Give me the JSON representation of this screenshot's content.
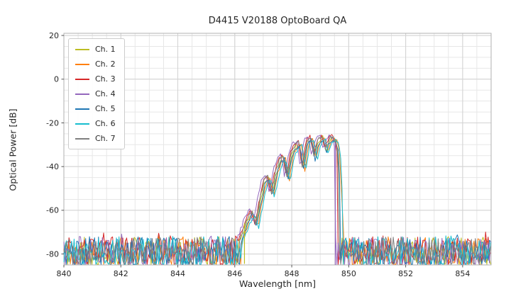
{
  "chart_data": {
    "type": "line",
    "title": "D4415 V20188 OptoBoard QA",
    "xlabel": "Wavelength [nm]",
    "ylabel": "Optical Power [dB]",
    "xlim": [
      840,
      855
    ],
    "ylim": [
      -85,
      21
    ],
    "xticks": [
      840,
      842,
      844,
      846,
      848,
      850,
      852,
      854
    ],
    "yticks": [
      20,
      0,
      -20,
      -40,
      -60,
      -80
    ],
    "grid": {
      "x_minor_step": 0.5,
      "y_minor_step": 5,
      "major_color": "#d2d2d2",
      "minor_color": "#e7e7e7"
    },
    "frame_color": "#b0b0b0",
    "tick_color": "#555555",
    "text_color": "#262626",
    "legend_position": "upper-left",
    "noise_floor": {
      "min": -86.5,
      "max": -72,
      "step_nm": 0.045
    },
    "signal_region": [
      846.15,
      849.86
    ],
    "mode_envelope": [
      [
        846.15,
        -76
      ],
      [
        846.3,
        -70
      ],
      [
        846.5,
        -63
      ],
      [
        846.62,
        -61
      ],
      [
        846.75,
        -67
      ],
      [
        846.9,
        -56
      ],
      [
        847.05,
        -47
      ],
      [
        847.18,
        -44.5
      ],
      [
        847.3,
        -53
      ],
      [
        847.45,
        -43
      ],
      [
        847.6,
        -37
      ],
      [
        847.72,
        -35.5
      ],
      [
        847.85,
        -46
      ],
      [
        848.0,
        -34
      ],
      [
        848.15,
        -30.5
      ],
      [
        848.28,
        -29.5
      ],
      [
        848.4,
        -41
      ],
      [
        848.55,
        -28.5
      ],
      [
        848.68,
        -27
      ],
      [
        848.8,
        -36
      ],
      [
        848.95,
        -28
      ],
      [
        849.1,
        -26.5
      ],
      [
        849.2,
        -33
      ],
      [
        849.35,
        -27.5
      ],
      [
        849.45,
        -27
      ],
      [
        849.55,
        -28.5
      ],
      [
        849.62,
        -33
      ],
      [
        849.7,
        -55
      ],
      [
        849.78,
        -75
      ]
    ],
    "series": [
      {
        "name": "Ch. 1",
        "color": "#bcbd22",
        "seed": 11,
        "x_shift": 0.0,
        "y_shift": 0.0,
        "cutoff": 849.66
      },
      {
        "name": "Ch. 2",
        "color": "#ff7f0e",
        "seed": 22,
        "x_shift": 0.06,
        "y_shift": -0.5,
        "cutoff": 849.86
      },
      {
        "name": "Ch. 3",
        "color": "#d62728",
        "seed": 33,
        "x_shift": -0.04,
        "y_shift": 0.8,
        "cutoff": 849.62
      },
      {
        "name": "Ch. 4",
        "color": "#9467bd",
        "seed": 44,
        "x_shift": -0.1,
        "y_shift": 1.2,
        "cutoff": 849.52
      },
      {
        "name": "Ch. 5",
        "color": "#1f77b4",
        "seed": 55,
        "x_shift": 0.02,
        "y_shift": -0.8,
        "cutoff": 849.7
      },
      {
        "name": "Ch. 6",
        "color": "#17becf",
        "seed": 66,
        "x_shift": 0.09,
        "y_shift": -1.2,
        "cutoff": 849.78
      },
      {
        "name": "Ch. 7",
        "color": "#7f7f7f",
        "seed": 77,
        "x_shift": -0.02,
        "y_shift": 0.5,
        "cutoff": 849.64
      }
    ],
    "dropouts": [
      {
        "series": 0,
        "x": 846.34,
        "y_top": -66,
        "y_bottom": -84.5
      },
      {
        "series": 3,
        "x": 849.53,
        "y_top": -29,
        "y_bottom": -85
      }
    ]
  }
}
